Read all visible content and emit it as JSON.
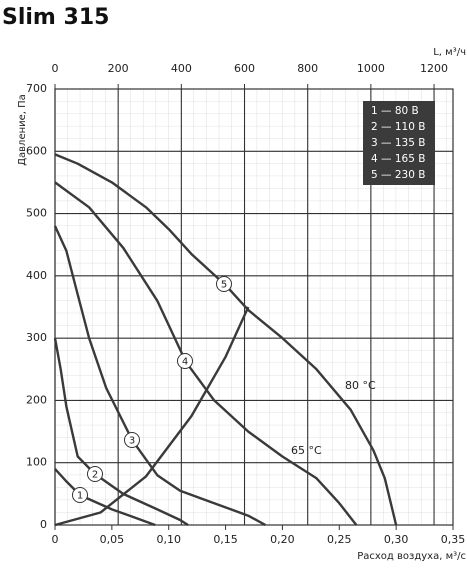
{
  "chart_data": {
    "type": "line",
    "title": "Slim 315",
    "ylabel": "Давление, Па",
    "xlabel": "Расход воздуха, м³/с",
    "x2label": "L, м³/ч",
    "xlim": [
      0,
      0.35
    ],
    "ylim": [
      0,
      700
    ],
    "x2lim": [
      0,
      1260
    ],
    "xticks": [
      0,
      {
        "value": 0.05,
        "label": "0,05"
      },
      {
        "value": 0.1,
        "label": "0,10"
      },
      {
        "value": 0.15,
        "label": "0,15"
      },
      {
        "value": 0.2,
        "label": "0,20"
      },
      {
        "value": 0.25,
        "label": "0,25"
      },
      {
        "value": 0.3,
        "label": "0,30"
      },
      {
        "value": 0.35,
        "label": "0,35"
      }
    ],
    "yticks": [
      0,
      100,
      200,
      300,
      400,
      500,
      600,
      700
    ],
    "x2ticks": [
      0,
      200,
      400,
      600,
      800,
      1000,
      1200
    ],
    "grid": true,
    "legend": "top-right",
    "series": [
      {
        "id": "1",
        "name": "1 — 80 В",
        "color": "#3a3a3a",
        "x": [
          0,
          0.01,
          0.022,
          0.05,
          0.07,
          0.088
        ],
        "values": [
          90,
          70,
          48,
          25,
          12,
          0
        ]
      },
      {
        "id": "2",
        "name": "2 — 110 В",
        "color": "#3a3a3a",
        "x": [
          0,
          0.005,
          0.01,
          0.02,
          0.035,
          0.06,
          0.09,
          0.11,
          0.117
        ],
        "values": [
          300,
          250,
          190,
          110,
          82,
          50,
          25,
          8,
          0
        ]
      },
      {
        "id": "3",
        "name": "3 — 135 В",
        "color": "#3a3a3a",
        "x": [
          0,
          0.01,
          0.02,
          0.03,
          0.045,
          0.068,
          0.09,
          0.11,
          0.14,
          0.17,
          0.185
        ],
        "values": [
          480,
          440,
          370,
          300,
          220,
          136,
          80,
          55,
          35,
          15,
          0
        ]
      },
      {
        "id": "4",
        "name": "4 — 165 В",
        "color": "#3a3a3a",
        "x": [
          0,
          0.03,
          0.06,
          0.09,
          0.115,
          0.14,
          0.17,
          0.2,
          0.23,
          0.25,
          0.265
        ],
        "values": [
          550,
          510,
          445,
          360,
          262,
          200,
          150,
          110,
          75,
          35,
          0
        ]
      },
      {
        "id": "5",
        "name": "5 — 230 В",
        "color": "#3a3a3a",
        "x": [
          0,
          0.02,
          0.05,
          0.08,
          0.1,
          0.12,
          0.15,
          0.17,
          0.2,
          0.23,
          0.26,
          0.28,
          0.29,
          0.3
        ],
        "values": [
          595,
          580,
          550,
          510,
          475,
          435,
          385,
          345,
          300,
          250,
          185,
          120,
          75,
          0
        ]
      },
      {
        "color": "#3a3a3a",
        "x": [
          0,
          0.04,
          0.08,
          0.12,
          0.15,
          0.17
        ],
        "values": [
          0,
          20,
          78,
          175,
          270,
          350
        ]
      }
    ],
    "annotations": [
      {
        "text": "80 °C"
      },
      {
        "text": "65 °C"
      }
    ]
  }
}
